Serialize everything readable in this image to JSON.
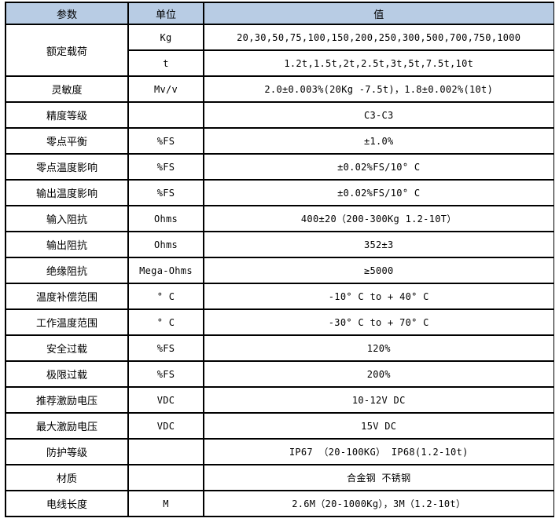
{
  "page": {
    "background_color": "#ffffff",
    "border_color": "#000000",
    "header_fill_color": "#b8cce4"
  },
  "table": {
    "headers": [
      "参数",
      "单位",
      "值"
    ],
    "rows": [
      {
        "param": "额定载荷",
        "subrows": [
          {
            "unit": "Kg",
            "value": "20,30,50,75,100,150,200,250,300,500,700,750,1000"
          },
          {
            "unit": "t",
            "value": "1.2t,1.5t,2t,2.5t,3t,5t,7.5t,10t"
          }
        ]
      },
      {
        "param": "灵敏度",
        "unit": "Mv/v",
        "value": "2.0±0.003%(20Kg -7.5t)，1.8±0.002%(10t)"
      },
      {
        "param": "精度等级",
        "unit": "",
        "value": "C3-C3"
      },
      {
        "param": "零点平衡",
        "unit": "%FS",
        "value": "±1.0%"
      },
      {
        "param": "零点温度影响",
        "unit": "%FS",
        "value": "±0.02%FS/10° C"
      },
      {
        "param": "输出温度影响",
        "unit": "%FS",
        "value": "±0.02%FS/10° C"
      },
      {
        "param": "输入阻抗",
        "unit": "Ohms",
        "value": "400±20（200-300Kg 1.2-10T）"
      },
      {
        "param": "输出阻抗",
        "unit": "Ohms",
        "value": "352±3"
      },
      {
        "param": "绝缘阻抗",
        "unit": "Mega-Ohms",
        "value": "≥5000"
      },
      {
        "param": "温度补偿范围",
        "unit": "° C",
        "value": "-10° C to + 40° C"
      },
      {
        "param": "工作温度范围",
        "unit": "° C",
        "value": "-30° C to + 70° C"
      },
      {
        "param": "安全过载",
        "unit": "%FS",
        "value": "120%"
      },
      {
        "param": "极限过载",
        "unit": "%FS",
        "value": "200%"
      },
      {
        "param": "推荐激励电压",
        "unit": "VDC",
        "value": "10-12V DC"
      },
      {
        "param": "最大激励电压",
        "unit": "VDC",
        "value": "15V DC"
      },
      {
        "param": "防护等级",
        "unit": "",
        "value": "IP67 （20-100KG） IP68(1.2-10t)"
      },
      {
        "param": "材质",
        "unit": "",
        "value": "合金钢 不锈钢"
      },
      {
        "param": "电线长度",
        "unit": "M",
        "value": "2.6M（20-1000Kg），3M（1.2-10t）"
      }
    ]
  }
}
